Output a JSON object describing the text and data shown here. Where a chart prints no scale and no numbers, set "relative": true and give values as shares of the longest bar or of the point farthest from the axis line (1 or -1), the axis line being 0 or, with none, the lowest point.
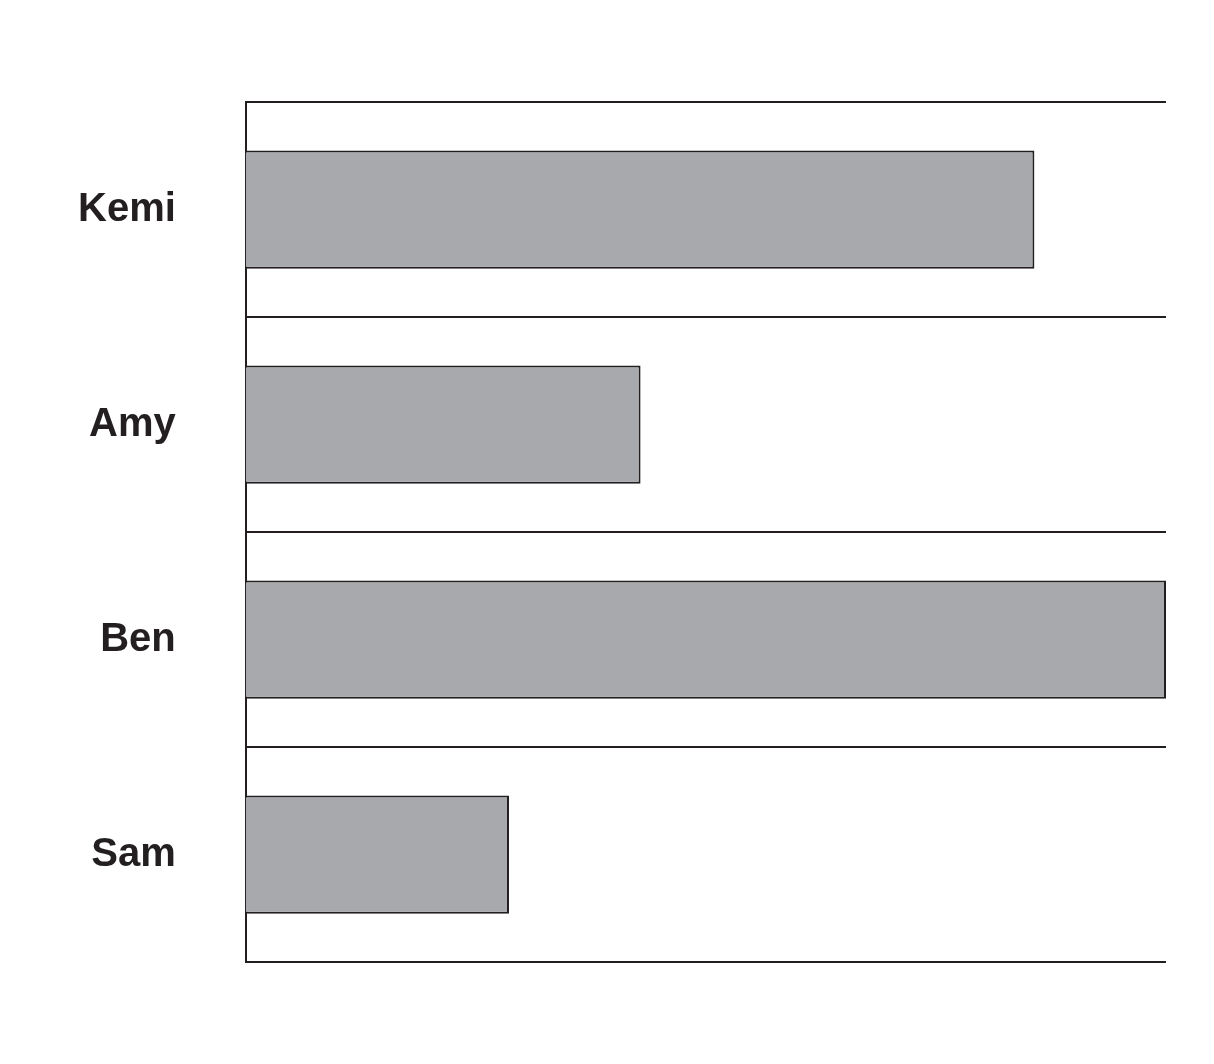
{
  "chart_data": {
    "type": "bar",
    "orientation": "horizontal",
    "relative": true,
    "categories": [
      "Kemi",
      "Amy",
      "Ben",
      "Sam"
    ],
    "values": [
      0.857,
      0.429,
      1,
      0.286
    ],
    "color": "#a7a9ac",
    "grid": "y",
    "legend": false
  }
}
